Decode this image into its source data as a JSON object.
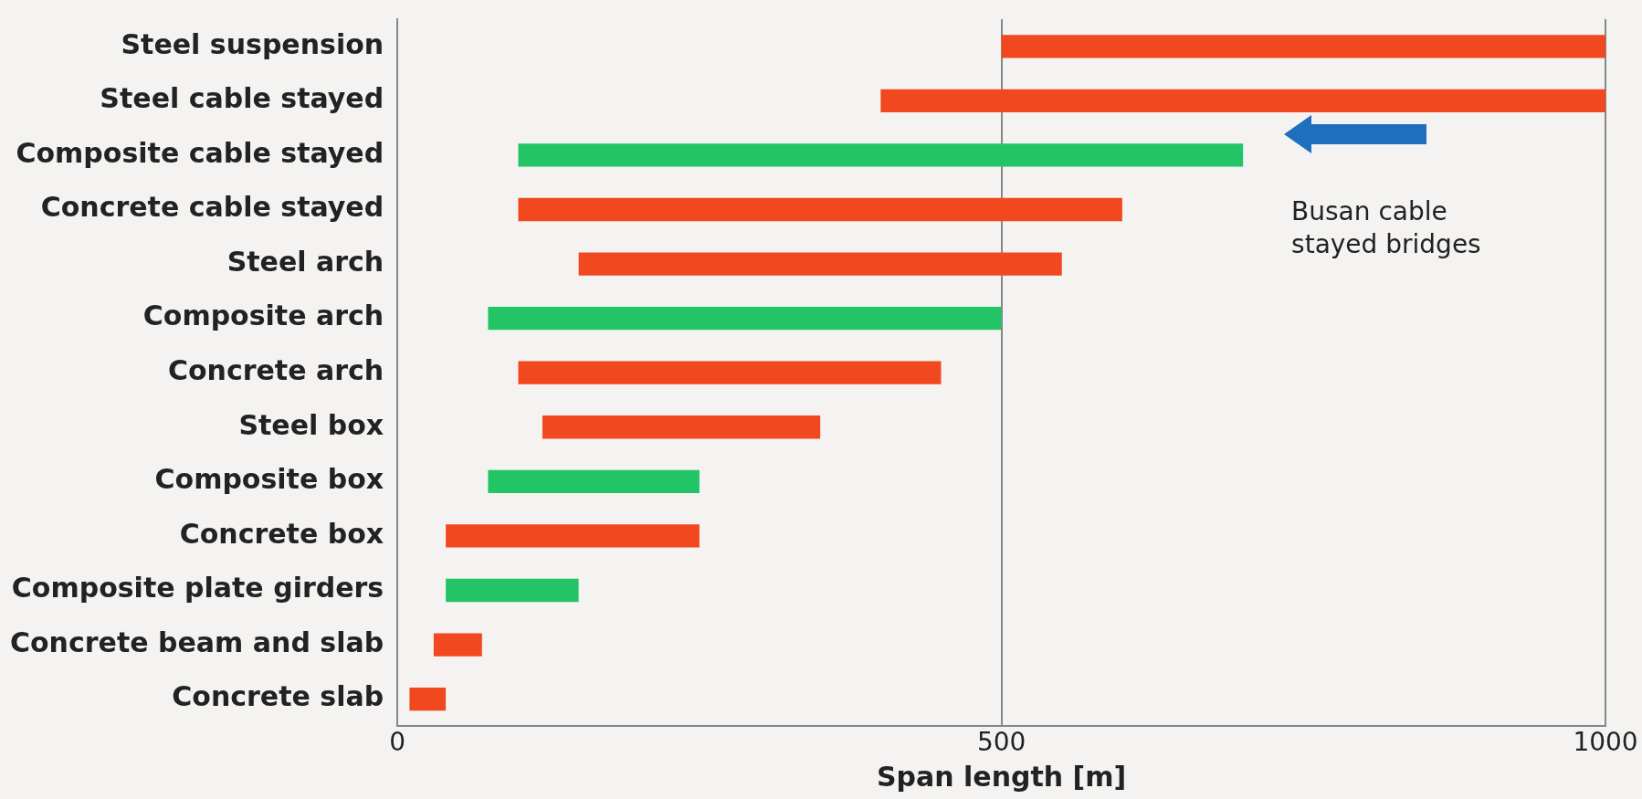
{
  "chart_data": {
    "type": "bar",
    "orientation": "horizontal",
    "xlabel": "Span length [m]",
    "categories": [
      "Steel suspension",
      "Steel cable stayed",
      "Composite cable stayed",
      "Concrete cable stayed",
      "Steel arch",
      "Composite arch",
      "Concrete arch",
      "Steel box",
      "Composite box",
      "Concrete box",
      "Composite plate girders",
      "Concrete beam and slab",
      "Concrete slab"
    ],
    "base": [
      500,
      400,
      100,
      100,
      150,
      75,
      100,
      120,
      75,
      40,
      40,
      30,
      10
    ],
    "values": [
      500,
      600,
      600,
      500,
      400,
      425,
      350,
      230,
      175,
      210,
      110,
      40,
      30
    ],
    "colors": [
      "#f2481f",
      "#f2481f",
      "#22c466",
      "#f2481f",
      "#f2481f",
      "#22c466",
      "#f2481f",
      "#f2481f",
      "#22c466",
      "#f2481f",
      "#22c466",
      "#f2481f",
      "#f2481f"
    ],
    "xlim": [
      0,
      1000
    ],
    "xticks": [
      0,
      500,
      1000
    ],
    "grid": "x",
    "legend": false,
    "annotations": [
      "Busan cable\nstayed bridges"
    ]
  }
}
